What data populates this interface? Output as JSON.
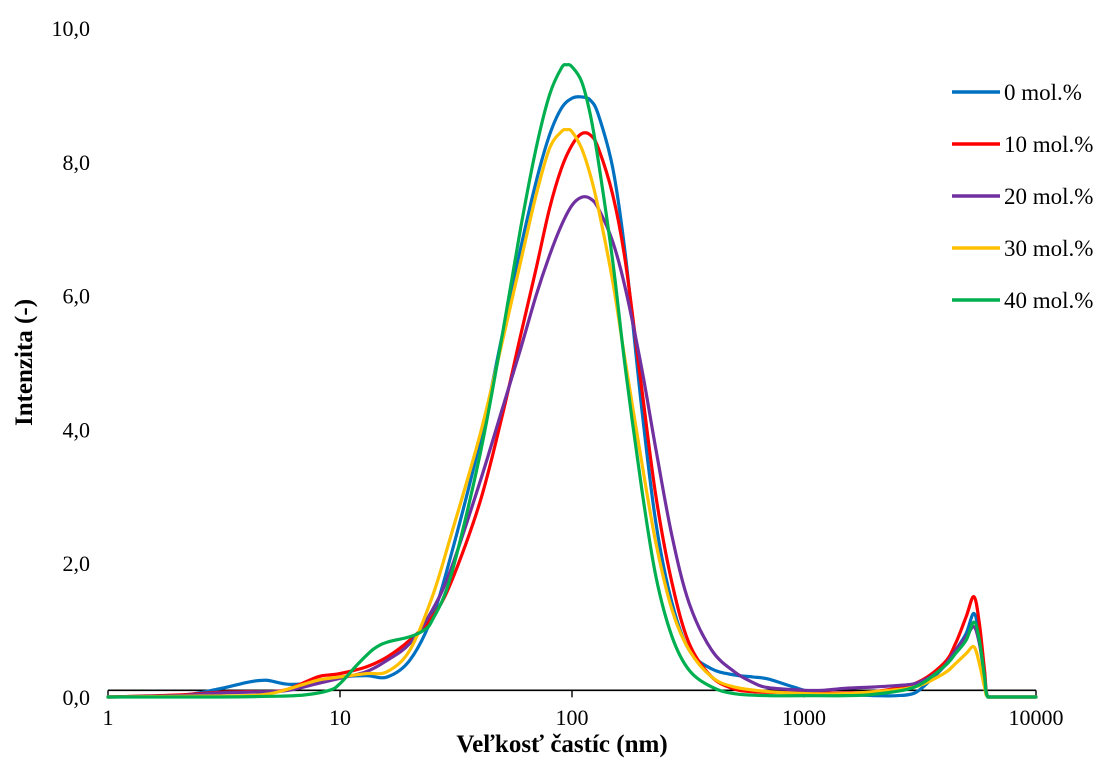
{
  "chart_data": {
    "type": "line",
    "xlabel": "Veľkosť častíc (nm)",
    "ylabel": "Intenzita (-)",
    "xscale": "log",
    "xlim": [
      1,
      10000
    ],
    "ylim": [
      0,
      10
    ],
    "x_ticks": [
      1,
      10,
      100,
      1000,
      10000
    ],
    "x_tick_labels": [
      "1",
      "10",
      "100",
      "1000",
      "10000"
    ],
    "y_ticks": [
      0,
      2,
      4,
      6,
      8,
      10
    ],
    "y_tick_labels": [
      "0,0",
      "2,0",
      "4,0",
      "6,0",
      "8,0",
      "10,0"
    ],
    "grid": false,
    "legend": "top-right",
    "baseline": {
      "y": 0.1,
      "color": "#000000"
    },
    "series": [
      {
        "name": "0 mol.%",
        "color": "#0070C0",
        "points": [
          [
            1,
            0
          ],
          [
            2,
            0.02
          ],
          [
            3,
            0.12
          ],
          [
            4,
            0.22
          ],
          [
            4.8,
            0.25
          ],
          [
            6,
            0.19
          ],
          [
            8,
            0.22
          ],
          [
            10,
            0.3
          ],
          [
            13,
            0.32
          ],
          [
            16,
            0.3
          ],
          [
            20,
            0.55
          ],
          [
            25,
            1.2
          ],
          [
            30,
            2.1
          ],
          [
            40,
            3.8
          ],
          [
            50,
            5.4
          ],
          [
            60,
            6.7
          ],
          [
            70,
            7.7
          ],
          [
            80,
            8.4
          ],
          [
            90,
            8.8
          ],
          [
            100,
            8.95
          ],
          [
            110,
            8.97
          ],
          [
            120,
            8.92
          ],
          [
            130,
            8.7
          ],
          [
            150,
            7.9
          ],
          [
            170,
            6.6
          ],
          [
            200,
            4.3
          ],
          [
            230,
            2.6
          ],
          [
            270,
            1.4
          ],
          [
            320,
            0.7
          ],
          [
            400,
            0.42
          ],
          [
            500,
            0.33
          ],
          [
            600,
            0.3
          ],
          [
            700,
            0.27
          ],
          [
            900,
            0.15
          ],
          [
            1100,
            0.07
          ],
          [
            1500,
            0.04
          ],
          [
            2000,
            0.02
          ],
          [
            2500,
            0.02
          ],
          [
            3000,
            0.06
          ],
          [
            3500,
            0.25
          ],
          [
            4000,
            0.45
          ],
          [
            4500,
            0.7
          ],
          [
            5000,
            0.95
          ],
          [
            5400,
            1.25
          ],
          [
            5700,
            0.9
          ],
          [
            6000,
            0.3
          ],
          [
            6200,
            0
          ],
          [
            7000,
            0
          ],
          [
            10000,
            0
          ]
        ]
      },
      {
        "name": "10 mol.%",
        "color": "#FF0000",
        "points": [
          [
            1,
            0
          ],
          [
            2,
            0.03
          ],
          [
            3,
            0.07
          ],
          [
            4,
            0.08
          ],
          [
            5,
            0.08
          ],
          [
            6,
            0.12
          ],
          [
            8,
            0.3
          ],
          [
            9,
            0.33
          ],
          [
            10,
            0.35
          ],
          [
            13,
            0.45
          ],
          [
            16,
            0.6
          ],
          [
            20,
            0.85
          ],
          [
            25,
            1.2
          ],
          [
            30,
            1.7
          ],
          [
            40,
            2.9
          ],
          [
            50,
            4.2
          ],
          [
            60,
            5.4
          ],
          [
            70,
            6.4
          ],
          [
            80,
            7.3
          ],
          [
            90,
            7.9
          ],
          [
            100,
            8.25
          ],
          [
            110,
            8.42
          ],
          [
            120,
            8.4
          ],
          [
            130,
            8.2
          ],
          [
            150,
            7.5
          ],
          [
            170,
            6.5
          ],
          [
            200,
            4.6
          ],
          [
            230,
            3.0
          ],
          [
            270,
            1.7
          ],
          [
            320,
            0.8
          ],
          [
            400,
            0.3
          ],
          [
            500,
            0.12
          ],
          [
            600,
            0.08
          ],
          [
            700,
            0.07
          ],
          [
            1000,
            0.06
          ],
          [
            1500,
            0.06
          ],
          [
            2000,
            0.08
          ],
          [
            3000,
            0.2
          ],
          [
            4000,
            0.5
          ],
          [
            4500,
            0.8
          ],
          [
            5000,
            1.2
          ],
          [
            5400,
            1.5
          ],
          [
            5700,
            1.1
          ],
          [
            6000,
            0.4
          ],
          [
            6200,
            0
          ],
          [
            7000,
            0
          ],
          [
            10000,
            0
          ]
        ]
      },
      {
        "name": "20 mol.%",
        "color": "#7030A0",
        "points": [
          [
            1,
            0
          ],
          [
            2,
            0.02
          ],
          [
            3,
            0.06
          ],
          [
            5,
            0.08
          ],
          [
            6,
            0.1
          ],
          [
            8,
            0.2
          ],
          [
            10,
            0.28
          ],
          [
            13,
            0.38
          ],
          [
            16,
            0.55
          ],
          [
            20,
            0.8
          ],
          [
            25,
            1.3
          ],
          [
            30,
            1.9
          ],
          [
            40,
            3.2
          ],
          [
            50,
            4.3
          ],
          [
            60,
            5.2
          ],
          [
            70,
            6.0
          ],
          [
            80,
            6.6
          ],
          [
            90,
            7.05
          ],
          [
            100,
            7.35
          ],
          [
            110,
            7.47
          ],
          [
            120,
            7.45
          ],
          [
            130,
            7.3
          ],
          [
            150,
            6.8
          ],
          [
            170,
            6.1
          ],
          [
            200,
            4.9
          ],
          [
            230,
            3.7
          ],
          [
            270,
            2.4
          ],
          [
            320,
            1.4
          ],
          [
            400,
            0.7
          ],
          [
            500,
            0.38
          ],
          [
            600,
            0.22
          ],
          [
            700,
            0.14
          ],
          [
            1000,
            0.1
          ],
          [
            1200,
            0.1
          ],
          [
            1500,
            0.13
          ],
          [
            2000,
            0.15
          ],
          [
            2500,
            0.17
          ],
          [
            3000,
            0.2
          ],
          [
            3500,
            0.3
          ],
          [
            4000,
            0.45
          ],
          [
            4500,
            0.7
          ],
          [
            5000,
            0.9
          ],
          [
            5400,
            1.05
          ],
          [
            5700,
            0.8
          ],
          [
            6000,
            0.3
          ],
          [
            6200,
            0
          ],
          [
            7000,
            0
          ],
          [
            10000,
            0
          ]
        ]
      },
      {
        "name": "30 mol.%",
        "color": "#FFC000",
        "points": [
          [
            1,
            0
          ],
          [
            2,
            0.01
          ],
          [
            4,
            0.02
          ],
          [
            5,
            0.05
          ],
          [
            6,
            0.12
          ],
          [
            8,
            0.25
          ],
          [
            10,
            0.3
          ],
          [
            13,
            0.35
          ],
          [
            16,
            0.38
          ],
          [
            20,
            0.7
          ],
          [
            25,
            1.5
          ],
          [
            30,
            2.4
          ],
          [
            40,
            3.9
          ],
          [
            50,
            5.3
          ],
          [
            60,
            6.5
          ],
          [
            70,
            7.5
          ],
          [
            80,
            8.2
          ],
          [
            90,
            8.45
          ],
          [
            95,
            8.48
          ],
          [
            100,
            8.45
          ],
          [
            110,
            8.2
          ],
          [
            120,
            7.8
          ],
          [
            130,
            7.3
          ],
          [
            150,
            6.2
          ],
          [
            170,
            5.0
          ],
          [
            200,
            3.5
          ],
          [
            230,
            2.3
          ],
          [
            270,
            1.3
          ],
          [
            320,
            0.7
          ],
          [
            400,
            0.3
          ],
          [
            500,
            0.15
          ],
          [
            700,
            0.08
          ],
          [
            1000,
            0.05
          ],
          [
            1500,
            0.05
          ],
          [
            2000,
            0.08
          ],
          [
            3000,
            0.15
          ],
          [
            4000,
            0.35
          ],
          [
            4500,
            0.5
          ],
          [
            5000,
            0.65
          ],
          [
            5400,
            0.75
          ],
          [
            5700,
            0.5
          ],
          [
            6000,
            0.15
          ],
          [
            6200,
            0
          ],
          [
            7000,
            0
          ],
          [
            10000,
            0
          ]
        ]
      },
      {
        "name": "40 mol.%",
        "color": "#00B050",
        "points": [
          [
            1,
            0
          ],
          [
            3,
            0
          ],
          [
            5,
            0.01
          ],
          [
            7,
            0.03
          ],
          [
            9,
            0.1
          ],
          [
            10,
            0.2
          ],
          [
            12,
            0.5
          ],
          [
            14,
            0.72
          ],
          [
            16,
            0.82
          ],
          [
            20,
            0.9
          ],
          [
            23,
            1.0
          ],
          [
            25,
            1.15
          ],
          [
            30,
            1.8
          ],
          [
            40,
            3.6
          ],
          [
            50,
            5.4
          ],
          [
            60,
            7.0
          ],
          [
            70,
            8.2
          ],
          [
            80,
            9.0
          ],
          [
            90,
            9.4
          ],
          [
            95,
            9.45
          ],
          [
            100,
            9.42
          ],
          [
            110,
            9.2
          ],
          [
            120,
            8.7
          ],
          [
            130,
            8.0
          ],
          [
            150,
            6.5
          ],
          [
            170,
            4.9
          ],
          [
            200,
            3.1
          ],
          [
            230,
            1.8
          ],
          [
            270,
            0.9
          ],
          [
            320,
            0.4
          ],
          [
            400,
            0.15
          ],
          [
            500,
            0.05
          ],
          [
            700,
            0.02
          ],
          [
            1000,
            0.02
          ],
          [
            1500,
            0.02
          ],
          [
            2000,
            0.04
          ],
          [
            3000,
            0.15
          ],
          [
            4000,
            0.45
          ],
          [
            4500,
            0.65
          ],
          [
            5000,
            0.85
          ],
          [
            5400,
            1.12
          ],
          [
            5700,
            0.85
          ],
          [
            6000,
            0.3
          ],
          [
            6200,
            0
          ],
          [
            7000,
            0
          ],
          [
            10000,
            0
          ]
        ]
      }
    ]
  }
}
